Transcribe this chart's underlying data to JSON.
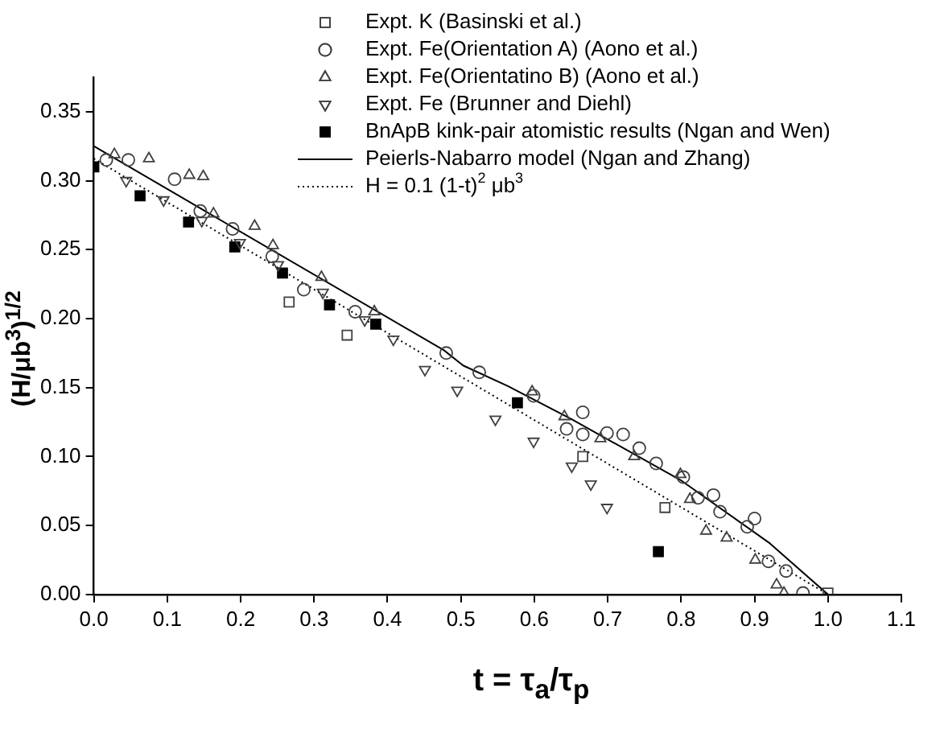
{
  "chart_data": {
    "type": "scatter",
    "xlabel": "t = τ$_{a}$/τ$_{p}$",
    "ylabel": "(H/μb$^{3}$)$^{1/2}$",
    "xlim": [
      0,
      1.1
    ],
    "xticks": [
      {
        "value": 0,
        "label": "0.0"
      },
      0.1,
      0.2,
      0.3,
      0.4,
      0.5,
      0.6,
      0.7,
      0.8,
      0.9,
      {
        "value": 1,
        "label": "1.0"
      },
      1.1
    ],
    "ylim": [
      0,
      0.375
    ],
    "yticks": [
      {
        "value": 0,
        "label": "0.00"
      },
      0.05,
      {
        "value": 0.1,
        "label": "0.10"
      },
      0.15,
      {
        "value": 0.2,
        "label": "0.20"
      },
      0.25,
      {
        "value": 0.3,
        "label": "0.30"
      },
      0.35
    ],
    "grid": false,
    "legend": "top right",
    "series": [
      {
        "name": "Expt. K (Basinski et al.)",
        "color": "#404040",
        "marker": "square_open",
        "x": [
          0.266,
          0.345,
          0.666,
          0.778,
          1.0
        ],
        "values": [
          0.212,
          0.188,
          0.1,
          0.063,
          0.001
        ]
      },
      {
        "name": "Expt. Fe(Orientation A) (Aono et al.)",
        "color": "#404040",
        "marker": "circle_open",
        "x": [
          0.017,
          0.047,
          0.11,
          0.145,
          0.189,
          0.243,
          0.286,
          0.356,
          0.48,
          0.525,
          0.599,
          0.644,
          0.666,
          0.666,
          0.699,
          0.721,
          0.743,
          0.766,
          0.803,
          0.823,
          0.844,
          0.853,
          0.89,
          0.9,
          0.919,
          0.943,
          0.966
        ],
        "values": [
          0.315,
          0.315,
          0.301,
          0.278,
          0.265,
          0.245,
          0.221,
          0.205,
          0.175,
          0.161,
          0.144,
          0.12,
          0.132,
          0.116,
          0.117,
          0.116,
          0.106,
          0.095,
          0.085,
          0.07,
          0.072,
          0.06,
          0.049,
          0.055,
          0.024,
          0.017,
          0.001
        ]
      },
      {
        "name": "Expt. Fe(Orientatino B) (Aono et al.)",
        "color": "#404040",
        "marker": "triangle_open",
        "x": [
          0.028,
          0.075,
          0.13,
          0.149,
          0.163,
          0.219,
          0.244,
          0.31,
          0.382,
          0.597,
          0.641,
          0.69,
          0.736,
          0.799,
          0.812,
          0.834,
          0.862,
          0.901,
          0.93,
          0.94
        ],
        "values": [
          0.319,
          0.316,
          0.304,
          0.303,
          0.276,
          0.267,
          0.253,
          0.23,
          0.205,
          0.147,
          0.129,
          0.113,
          0.1,
          0.087,
          0.069,
          0.046,
          0.041,
          0.025,
          0.007,
          0.001
        ]
      },
      {
        "name": "Expt. Fe (Brunner and Diehl)",
        "color": "#404040",
        "marker": "triangle_down_open",
        "x": [
          0.044,
          0.095,
          0.147,
          0.199,
          0.251,
          0.312,
          0.369,
          0.408,
          0.451,
          0.495,
          0.547,
          0.599,
          0.651,
          0.677,
          0.699
        ],
        "values": [
          0.3,
          0.286,
          0.271,
          0.255,
          0.239,
          0.219,
          0.199,
          0.185,
          0.163,
          0.148,
          0.127,
          0.111,
          0.093,
          0.08,
          0.063
        ]
      },
      {
        "name": "BnApB kink-pair atomistic results (Ngan and Wen)",
        "color": "#000000",
        "marker": "square",
        "x": [
          0.0,
          0.063,
          0.129,
          0.192,
          0.257,
          0.321,
          0.384,
          0.577,
          0.769
        ],
        "values": [
          0.31,
          0.289,
          0.27,
          0.252,
          0.233,
          0.21,
          0.196,
          0.139,
          0.031
        ]
      },
      {
        "name": "Peierls-Nabarro model (Ngan and Zhang)",
        "type": "line",
        "color": "#000000",
        "marker": "none",
        "line_style": "solid",
        "x": [
          0,
          0.477,
          0.503,
          0.564,
          0.651,
          0.799,
          0.921,
          1.0
        ],
        "values": [
          0.325,
          0.177,
          0.166,
          0.151,
          0.127,
          0.083,
          0.037,
          0
        ]
      },
      {
        "name": "H = 0.1 (1-t)$^{2}$ μb$^{3}$",
        "type": "line",
        "color": "#000000",
        "marker": "none",
        "line_style": "dotted",
        "x": [
          0,
          1.0
        ],
        "values": [
          0.316,
          0
        ]
      }
    ]
  }
}
